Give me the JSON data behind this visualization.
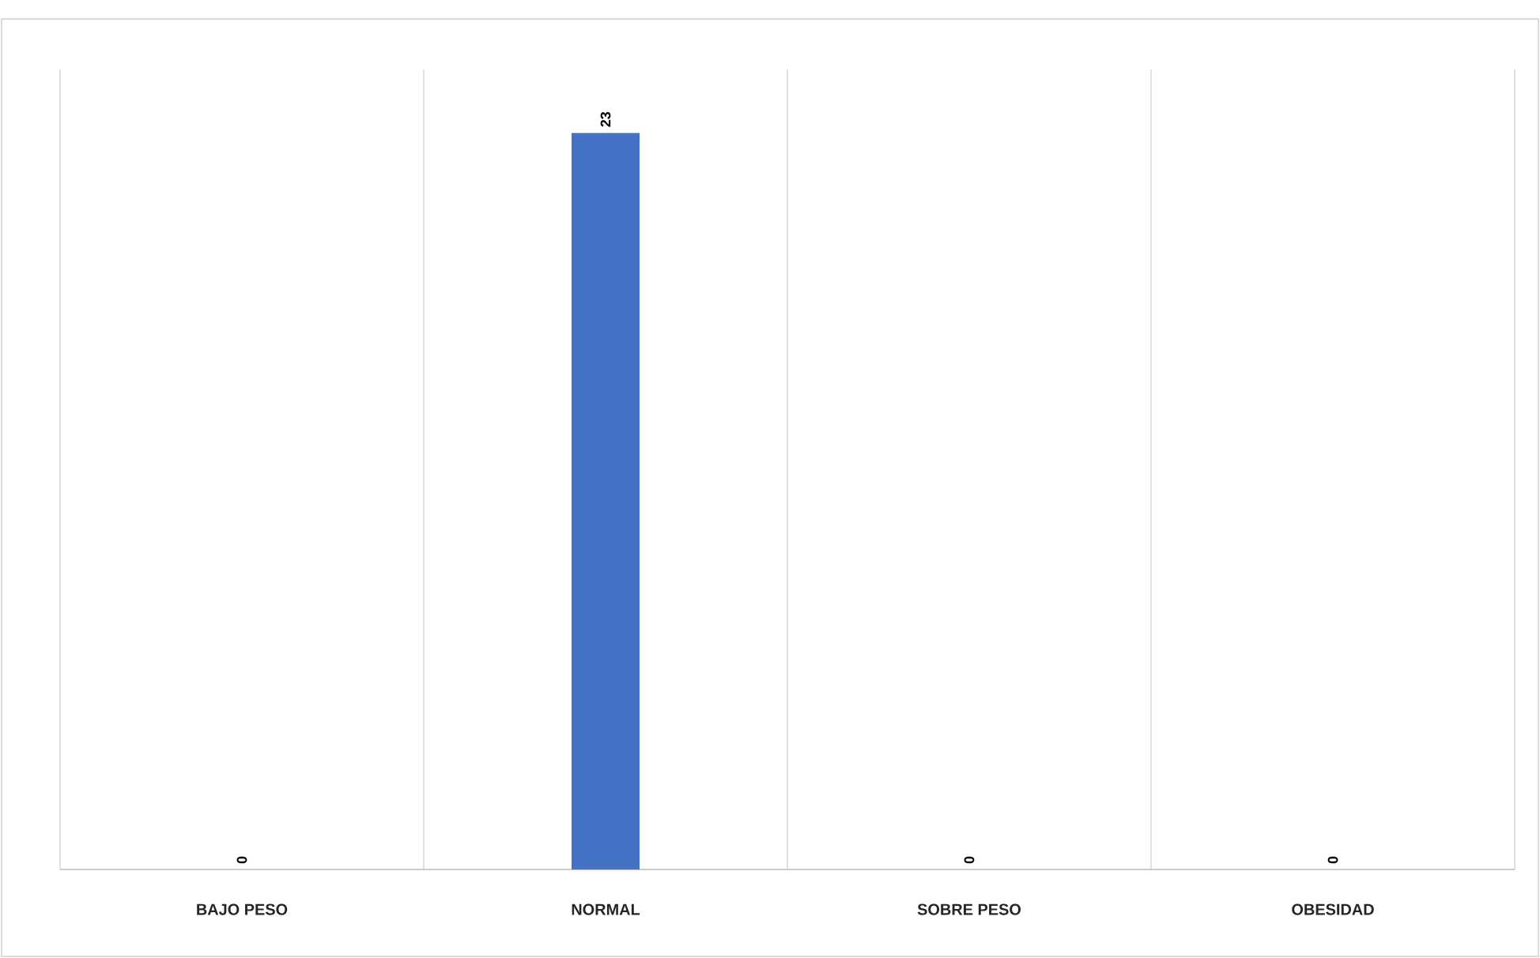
{
  "chart_data": {
    "type": "bar",
    "categories": [
      "BAJO PESO",
      "NORMAL",
      "SOBRE PESO",
      "OBESIDAD"
    ],
    "values": [
      0,
      23,
      0,
      0
    ],
    "color": "#4472c4",
    "data_labels": true,
    "grid": "x"
  }
}
